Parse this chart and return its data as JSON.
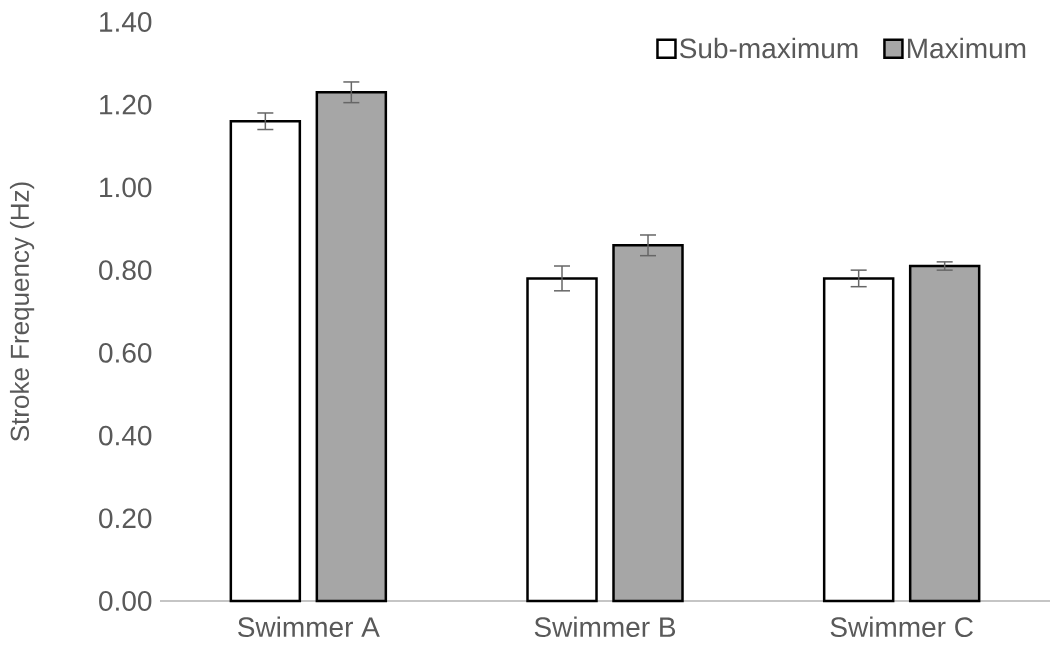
{
  "chart_data": {
    "type": "bar",
    "ylabel": "Stroke Frequency (Hz)",
    "categories": [
      "Swimmer A",
      "Swimmer B",
      "Swimmer C"
    ],
    "series": [
      {
        "name": "Sub-maximum",
        "color": "#ffffff",
        "values": [
          1.16,
          0.78,
          0.78
        ],
        "errors": [
          0.02,
          0.03,
          0.02
        ]
      },
      {
        "name": "Maximum",
        "color": "#a6a6a6",
        "values": [
          1.23,
          0.86,
          0.81
        ],
        "errors": [
          0.025,
          0.025,
          0.01
        ]
      }
    ],
    "ylim": [
      0,
      1.4
    ],
    "yticks": [
      {
        "value": 0,
        "label": "0.00"
      },
      {
        "value": 0.2,
        "label": "0.20"
      },
      {
        "value": 0.4,
        "label": "0.40"
      },
      {
        "value": 0.6,
        "label": "0.60"
      },
      {
        "value": 0.8,
        "label": "0.80"
      },
      {
        "value": 1.0,
        "label": "1.00"
      },
      {
        "value": 1.2,
        "label": "1.20"
      },
      {
        "value": 1.4,
        "label": "1.40"
      }
    ],
    "grid": false,
    "legend": "top right"
  }
}
